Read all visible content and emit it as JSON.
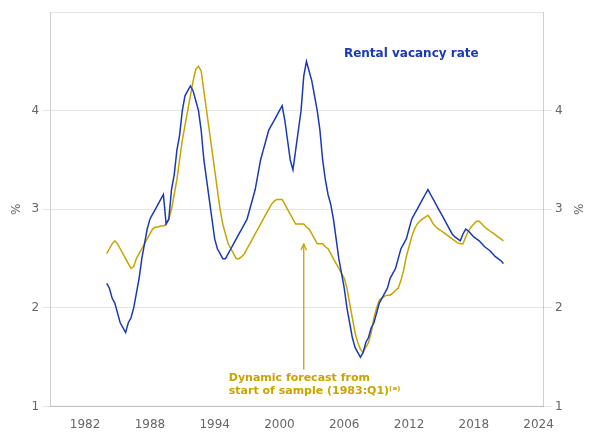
{
  "chart_data": {
    "type": "line",
    "ylabel": "%",
    "y2label": "%",
    "x": [
      1984,
      1984.25,
      1984.5,
      1984.75,
      1985,
      1985.25,
      1985.5,
      1985.75,
      1986,
      1986.25,
      1986.5,
      1986.75,
      1987,
      1987.25,
      1987.5,
      1987.75,
      1988,
      1988.25,
      1988.5,
      1988.75,
      1989,
      1989.25,
      1989.5,
      1989.75,
      1990,
      1990.25,
      1990.5,
      1990.75,
      1991,
      1991.25,
      1991.5,
      1991.75,
      1992,
      1992.25,
      1992.5,
      1992.75,
      1993,
      1993.25,
      1993.5,
      1993.75,
      1994,
      1994.25,
      1994.5,
      1994.75,
      1995,
      1995.25,
      1995.5,
      1995.75,
      1996,
      1996.25,
      1996.5,
      1996.75,
      1997,
      1997.25,
      1997.5,
      1997.75,
      1998,
      1998.25,
      1998.5,
      1998.75,
      1999,
      1999.25,
      1999.5,
      1999.75,
      2000,
      2000.25,
      2000.5,
      2000.75,
      2001,
      2001.25,
      2001.5,
      2001.75,
      2002,
      2002.25,
      2002.5,
      2002.75,
      2003,
      2003.25,
      2003.5,
      2003.75,
      2004,
      2004.25,
      2004.5,
      2004.75,
      2005,
      2005.25,
      2005.5,
      2005.75,
      2006,
      2006.25,
      2006.5,
      2006.75,
      2007,
      2007.25,
      2007.5,
      2007.75,
      2008,
      2008.25,
      2008.5,
      2008.75,
      2009,
      2009.25,
      2009.5,
      2009.75,
      2010,
      2010.25,
      2010.5,
      2010.75,
      2011,
      2011.25,
      2011.5,
      2011.75,
      2012,
      2012.25,
      2012.5,
      2012.75,
      2013,
      2013.25,
      2013.5,
      2013.75,
      2014,
      2014.25,
      2014.5,
      2014.75,
      2015,
      2015.25,
      2015.5,
      2015.75,
      2016,
      2016.25,
      2016.5,
      2016.75,
      2017,
      2017.25,
      2017.5,
      2017.75,
      2018,
      2018.25,
      2018.5,
      2018.75,
      2019,
      2019.25,
      2019.5,
      2019.75,
      2020,
      2020.25,
      2020.5,
      2020.75
    ],
    "series": [
      {
        "color": "#1a3ab5",
        "values": [
          2.25,
          2.2,
          2.1,
          2.05,
          1.95,
          1.85,
          1.8,
          1.75,
          1.85,
          1.9,
          2.0,
          2.15,
          2.3,
          2.5,
          2.65,
          2.8,
          2.9,
          2.95,
          3.0,
          3.05,
          3.1,
          3.15,
          2.85,
          2.9,
          3.2,
          3.35,
          3.6,
          3.75,
          4.0,
          4.15,
          4.2,
          4.25,
          4.2,
          4.1,
          4.0,
          3.8,
          3.5,
          3.3,
          3.1,
          2.9,
          2.7,
          2.6,
          2.55,
          2.5,
          2.5,
          2.55,
          2.6,
          2.65,
          2.7,
          2.75,
          2.8,
          2.85,
          2.9,
          3.0,
          3.1,
          3.2,
          3.35,
          3.5,
          3.6,
          3.7,
          3.8,
          3.85,
          3.9,
          3.95,
          4.0,
          4.05,
          3.9,
          3.7,
          3.5,
          3.4,
          3.6,
          3.8,
          4.0,
          4.35,
          4.5,
          4.4,
          4.3,
          4.15,
          4.0,
          3.8,
          3.5,
          3.3,
          3.15,
          3.05,
          2.9,
          2.7,
          2.5,
          2.35,
          2.2,
          2.0,
          1.85,
          1.7,
          1.6,
          1.55,
          1.5,
          1.55,
          1.65,
          1.7,
          1.8,
          1.85,
          1.95,
          2.05,
          2.1,
          2.15,
          2.2,
          2.3,
          2.35,
          2.4,
          2.5,
          2.6,
          2.65,
          2.7,
          2.8,
          2.9,
          2.95,
          3.0,
          3.05,
          3.1,
          3.15,
          3.2,
          3.15,
          3.1,
          3.05,
          3.0,
          2.95,
          2.9,
          2.85,
          2.8,
          2.75,
          2.72,
          2.7,
          2.68,
          2.75,
          2.8,
          2.78,
          2.75,
          2.72,
          2.7,
          2.68,
          2.65,
          2.62,
          2.6,
          2.58,
          2.55,
          2.52,
          2.5,
          2.48,
          2.45
        ]
      },
      {
        "color": "#c8a400",
        "values": [
          2.55,
          2.6,
          2.65,
          2.68,
          2.65,
          2.6,
          2.55,
          2.5,
          2.45,
          2.4,
          2.42,
          2.5,
          2.55,
          2.6,
          2.65,
          2.7,
          2.75,
          2.8,
          2.82,
          2.82,
          2.83,
          2.83,
          2.85,
          2.9,
          3.0,
          3.15,
          3.3,
          3.5,
          3.7,
          3.85,
          4.0,
          4.15,
          4.3,
          4.42,
          4.45,
          4.4,
          4.2,
          4.0,
          3.8,
          3.6,
          3.4,
          3.2,
          3.0,
          2.85,
          2.75,
          2.65,
          2.6,
          2.55,
          2.5,
          2.5,
          2.52,
          2.55,
          2.6,
          2.65,
          2.7,
          2.75,
          2.8,
          2.85,
          2.9,
          2.95,
          3.0,
          3.05,
          3.08,
          3.1,
          3.1,
          3.1,
          3.05,
          3.0,
          2.95,
          2.9,
          2.85,
          2.85,
          2.85,
          2.85,
          2.82,
          2.8,
          2.75,
          2.7,
          2.65,
          2.65,
          2.65,
          2.62,
          2.6,
          2.55,
          2.5,
          2.45,
          2.4,
          2.35,
          2.3,
          2.2,
          2.05,
          1.9,
          1.75,
          1.65,
          1.58,
          1.55,
          1.6,
          1.65,
          1.75,
          1.9,
          2.0,
          2.08,
          2.1,
          2.12,
          2.13,
          2.13,
          2.15,
          2.18,
          2.2,
          2.28,
          2.38,
          2.52,
          2.62,
          2.72,
          2.8,
          2.85,
          2.88,
          2.9,
          2.92,
          2.94,
          2.9,
          2.85,
          2.82,
          2.8,
          2.78,
          2.76,
          2.74,
          2.72,
          2.7,
          2.68,
          2.66,
          2.65,
          2.65,
          2.72,
          2.78,
          2.82,
          2.85,
          2.88,
          2.88,
          2.85,
          2.82,
          2.8,
          2.78,
          2.76,
          2.74,
          2.72,
          2.7,
          2.68
        ]
      }
    ],
    "xlim": [
      1978.75,
      2024.5
    ],
    "xticks": [
      1982,
      1988,
      1994,
      2000,
      2006,
      2012,
      2018,
      2024
    ],
    "ylim": [
      1,
      5
    ],
    "yticks": [
      1,
      2,
      3,
      4
    ],
    "y2lim": [
      1,
      5
    ],
    "y2ticks": [
      1,
      2,
      3,
      4
    ],
    "grid": "y",
    "annotations": [
      {
        "text": "Rental vacancy rate",
        "color": "#1a3ab5"
      },
      {
        "text": "Dynamic forecast from\nstart of sample (1983:Q1)⁽ᵃ⁾",
        "x": 2002.25,
        "y": 2.65,
        "color": "#c8a400"
      }
    ]
  }
}
